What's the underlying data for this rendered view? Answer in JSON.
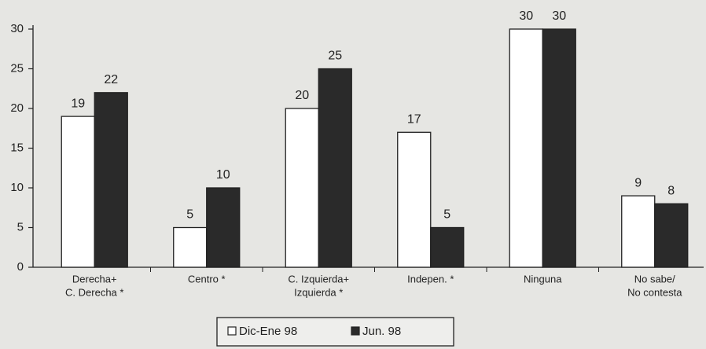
{
  "chart_data": {
    "type": "bar",
    "categories": [
      [
        "Derecha+",
        "C. Derecha *"
      ],
      [
        "Centro *"
      ],
      [
        "C. Izquierda+",
        "Izquierda *"
      ],
      [
        "Indepen. *"
      ],
      [
        "Ninguna"
      ],
      [
        "No sabe/",
        "No contesta"
      ]
    ],
    "series": [
      {
        "name": "Dic-Ene 98",
        "color": "#ffffff",
        "values": [
          19,
          5,
          20,
          17,
          30,
          9
        ]
      },
      {
        "name": "Jun. 98",
        "color": "#2a2a2a",
        "values": [
          22,
          10,
          25,
          5,
          30,
          8
        ]
      }
    ],
    "ylim": [
      0,
      30
    ],
    "yticks": [
      0,
      5,
      10,
      15,
      20,
      25,
      30
    ],
    "legend": "bottom"
  }
}
